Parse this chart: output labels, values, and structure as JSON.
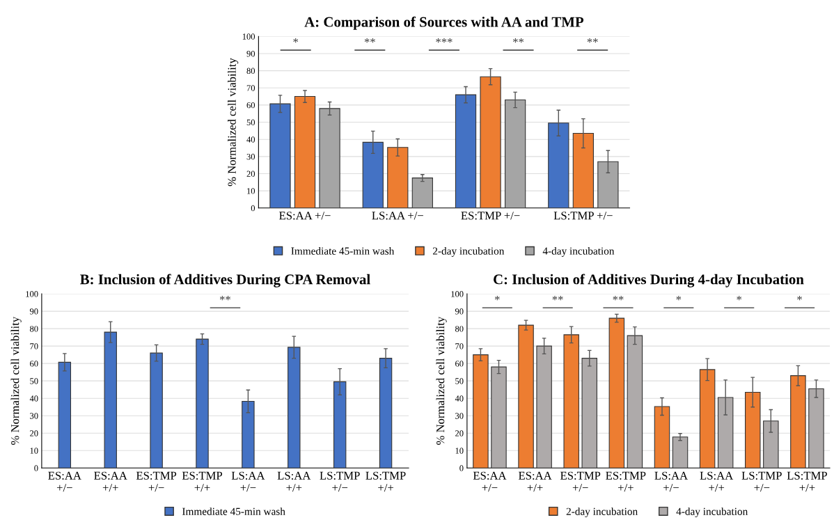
{
  "chart_data": [
    {
      "type": "bar",
      "title": "A: Comparison of Sources with AA and TMP",
      "ylabel": "% Normalized cell viability",
      "categories": [
        "ES:AA +/−",
        "LS:AA +/−",
        "ES:TMP +/−",
        "LS:TMP +/−"
      ],
      "series": [
        {
          "name": "Immediate 45-min wash",
          "color": "#4472c4",
          "values": [
            60.7,
            38.3,
            66,
            49.5
          ],
          "errors": [
            5,
            6.5,
            4.7,
            7.5
          ]
        },
        {
          "name": "2-day incubation",
          "color": "#ed7d31",
          "values": [
            65,
            35.3,
            76.5,
            43.5
          ],
          "errors": [
            3.5,
            5,
            4.7,
            8.5
          ]
        },
        {
          "name": "4-day incubation",
          "color": "#a5a5a5",
          "values": [
            58,
            17.5,
            63,
            27
          ],
          "errors": [
            3.8,
            2,
            4.5,
            6.5
          ]
        }
      ],
      "ylim": [
        0,
        100
      ],
      "yticks": [
        0,
        10,
        20,
        30,
        40,
        50,
        60,
        70,
        80,
        90,
        100
      ],
      "grid": "y",
      "legend": "bottom",
      "annotations": [
        "*",
        "**",
        "***",
        "**",
        "**"
      ]
    },
    {
      "type": "bar",
      "title": "B: Inclusion of Additives During CPA Removal",
      "ylabel": "% Normalized cell viability",
      "categories": [
        "ES:AA\n+/−",
        "ES:AA\n+/+",
        "ES:TMP\n+/−",
        "ES:TMP\n+/+",
        "LS:AA\n+/−",
        "LS:AA\n+/+",
        "LS:TMP\n+/−",
        "LS:TMP\n+/+"
      ],
      "series": [
        {
          "name": "Immediate 45-min wash",
          "color": "#4472c4",
          "values": [
            60.7,
            78,
            66,
            74,
            38.3,
            69.3,
            49.5,
            63
          ],
          "errors": [
            5,
            6,
            4.7,
            3,
            6.5,
            6.3,
            7.5,
            5.5
          ]
        }
      ],
      "ylim": [
        0,
        100
      ],
      "yticks": [
        0,
        10,
        20,
        30,
        40,
        50,
        60,
        70,
        80,
        90,
        100
      ],
      "grid": "y",
      "legend": "bottom",
      "annotations": [
        "**"
      ]
    },
    {
      "type": "bar",
      "title": "C: Inclusion of Additives During 4-day Incubation",
      "ylabel": "% Normalized cell viability",
      "categories": [
        "ES:AA\n+/−",
        "ES:AA\n+/+",
        "ES:TMP\n+/−",
        "ES:TMP\n+/+",
        "LS:AA\n+/−",
        "LS:AA\n+/+",
        "LS:TMP\n+/−",
        "LS:TMP\n+/+"
      ],
      "series": [
        {
          "name": "2-day incubation",
          "color": "#ed7d31",
          "values": [
            65,
            82,
            76.5,
            86,
            35.3,
            56.5,
            43.5,
            53
          ],
          "errors": [
            3.5,
            2.8,
            4.7,
            2.3,
            5,
            6.3,
            8.5,
            5.7
          ]
        },
        {
          "name": "4-day incubation",
          "color": "#aeaaaa",
          "values": [
            58,
            70,
            63,
            76,
            17.8,
            40.5,
            27,
            45.5
          ],
          "errors": [
            3.8,
            4.5,
            4.5,
            5,
            2,
            10,
            6.5,
            5
          ]
        }
      ],
      "ylim": [
        0,
        100
      ],
      "yticks": [
        0,
        10,
        20,
        30,
        40,
        50,
        60,
        70,
        80,
        90,
        100
      ],
      "grid": "y",
      "legend": "bottom",
      "annotations": [
        "*",
        "**",
        "**",
        "*",
        "*",
        "*"
      ]
    }
  ]
}
